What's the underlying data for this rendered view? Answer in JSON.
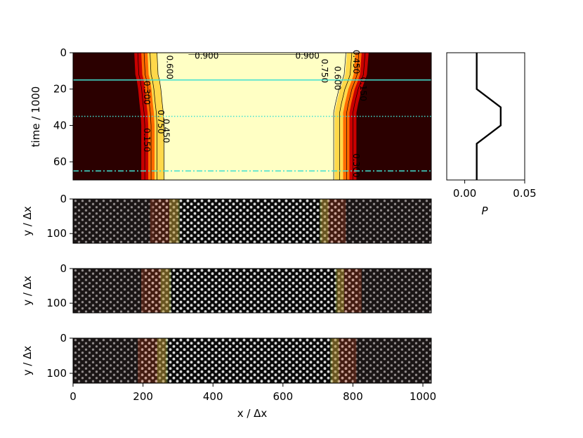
{
  "chart_data": [
    {
      "type": "heatmap",
      "panel": "time-evolution",
      "title": "",
      "xlabel": "",
      "ylabel": "time / 1000",
      "xlim": [
        0,
        1024
      ],
      "ylim": [
        70,
        0
      ],
      "yticks": [
        "0",
        "20",
        "40",
        "60"
      ],
      "colormap": "hot",
      "contour_levels": [
        "0.150",
        "0.300",
        "0.450",
        "0.600",
        "0.750",
        "0.900"
      ],
      "contour_labels": [
        {
          "text": "0.900",
          "x": 382,
          "t": 2
        },
        {
          "text": "0.900",
          "x": 670,
          "t": 2
        },
        {
          "text": "0.600",
          "x": 275,
          "t": 8
        },
        {
          "text": "0.750",
          "x": 718,
          "t": 10
        },
        {
          "text": "0.600",
          "x": 755,
          "t": 14
        },
        {
          "text": "0.450",
          "x": 808,
          "t": 5
        },
        {
          "text": "0.150",
          "x": 828,
          "t": 20
        },
        {
          "text": "0.300",
          "x": 210,
          "t": 22
        },
        {
          "text": "0.750",
          "x": 250,
          "t": 38
        },
        {
          "text": "0.150",
          "x": 210,
          "t": 48
        },
        {
          "text": "0.450",
          "x": 265,
          "t": 43
        },
        {
          "text": "0.300",
          "x": 808,
          "t": 62
        }
      ],
      "left_front": {
        "time": [
          0,
          12,
          15,
          20,
          28,
          33,
          40,
          50,
          58,
          70
        ],
        "x": [
          215,
          218,
          222,
          226,
          230,
          233,
          235,
          235,
          235,
          235
        ]
      },
      "right_front": {
        "time": [
          0,
          12,
          15,
          20,
          28,
          33,
          40,
          50,
          58,
          70
        ],
        "x": [
          795,
          790,
          785,
          775,
          765,
          760,
          760,
          760,
          760,
          760
        ]
      },
      "marker_lines": [
        {
          "time": 15,
          "style": "solid",
          "color": "#40e0d0"
        },
        {
          "time": 35,
          "style": "dotted",
          "color": "#40e0d0"
        },
        {
          "time": 65,
          "style": "dashdot",
          "color": "#40e0d0"
        }
      ]
    },
    {
      "type": "line",
      "panel": "pressure-schedule",
      "xlabel": "P",
      "xlim": [
        -0.015,
        0.05
      ],
      "ylim": [
        70,
        0
      ],
      "xticks": [
        "0.00",
        "0.05"
      ],
      "series": [
        {
          "x": [
            0.01,
            0.01,
            0.03,
            0.03,
            0.01,
            0.01
          ],
          "y": [
            0,
            20,
            30,
            40,
            50,
            70
          ]
        }
      ]
    },
    {
      "type": "heatmap",
      "panel": "snapshot-1",
      "ylabel": "y / Δx",
      "yticks": [
        "0",
        "100"
      ],
      "xlim": [
        0,
        1024
      ],
      "ylim": [
        128,
        0
      ],
      "solid_region": [
        290,
        720
      ]
    },
    {
      "type": "heatmap",
      "panel": "snapshot-2",
      "ylabel": "y / Δx",
      "yticks": [
        "0",
        "100"
      ],
      "xlim": [
        0,
        1024
      ],
      "ylim": [
        128,
        0
      ],
      "solid_region": [
        265,
        765
      ]
    },
    {
      "type": "heatmap",
      "panel": "snapshot-3",
      "ylabel": "y / Δx",
      "yticks": [
        "0",
        "100"
      ],
      "xlabel": "x / Δx",
      "xticks": [
        "0",
        "200",
        "400",
        "600",
        "800",
        "1000"
      ],
      "xlim": [
        0,
        1024
      ],
      "ylim": [
        128,
        0
      ],
      "solid_region": [
        255,
        750
      ]
    }
  ]
}
